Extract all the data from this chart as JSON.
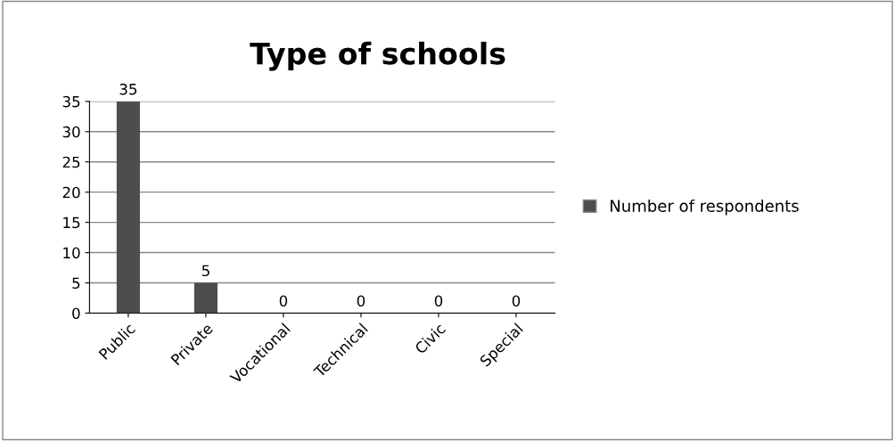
{
  "chart_data": {
    "type": "bar",
    "title": "Type of schools",
    "categories": [
      "Public",
      "Private",
      "Vocational",
      "Technical",
      "Civic",
      "Special"
    ],
    "series": [
      {
        "name": "Number of respondents",
        "color": "#4d4d4d",
        "values": [
          35,
          5,
          0,
          0,
          0,
          0
        ]
      }
    ],
    "ylim": [
      0,
      35
    ],
    "yticks": [
      0,
      5,
      10,
      15,
      20,
      25,
      30,
      35
    ],
    "grid": "y",
    "legend": "right",
    "data_labels": true
  }
}
